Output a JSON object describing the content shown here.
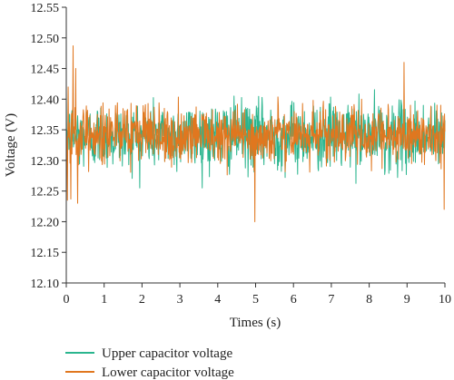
{
  "chart_data": {
    "type": "line",
    "title": "",
    "xlabel": "Times (s)",
    "ylabel": "Voltage (V)",
    "xlim": [
      0,
      10
    ],
    "ylim": [
      12.1,
      12.55
    ],
    "xticks": [
      "0",
      "1",
      "2",
      "3",
      "4",
      "5",
      "6",
      "7",
      "8",
      "9",
      "10"
    ],
    "yticks": [
      "12.10",
      "12.15",
      "12.20",
      "12.25",
      "12.30",
      "12.35",
      "12.40",
      "12.45",
      "12.50",
      "12.55"
    ],
    "grid": false,
    "legend_position": "bottom-left",
    "series": [
      {
        "name": "Upper capacitor voltage",
        "color": "#2ab58e",
        "mean": 12.34,
        "noise_amplitude": 0.03,
        "min": 12.245,
        "max": 12.435,
        "samples_per_second": 100
      },
      {
        "name": "Lower capacitor voltage",
        "color": "#e0771f",
        "mean": 12.34,
        "noise_amplitude": 0.025,
        "min": 12.2,
        "max": 12.487,
        "samples_per_second": 100,
        "spikes": [
          {
            "x": 0.03,
            "y": 12.235
          },
          {
            "x": 0.05,
            "y": 12.42
          },
          {
            "x": 0.12,
            "y": 12.237
          },
          {
            "x": 0.18,
            "y": 12.487
          },
          {
            "x": 0.25,
            "y": 12.45
          },
          {
            "x": 0.3,
            "y": 12.23
          },
          {
            "x": 4.98,
            "y": 12.2
          },
          {
            "x": 8.92,
            "y": 12.46
          },
          {
            "x": 9.98,
            "y": 12.22
          }
        ]
      }
    ]
  }
}
